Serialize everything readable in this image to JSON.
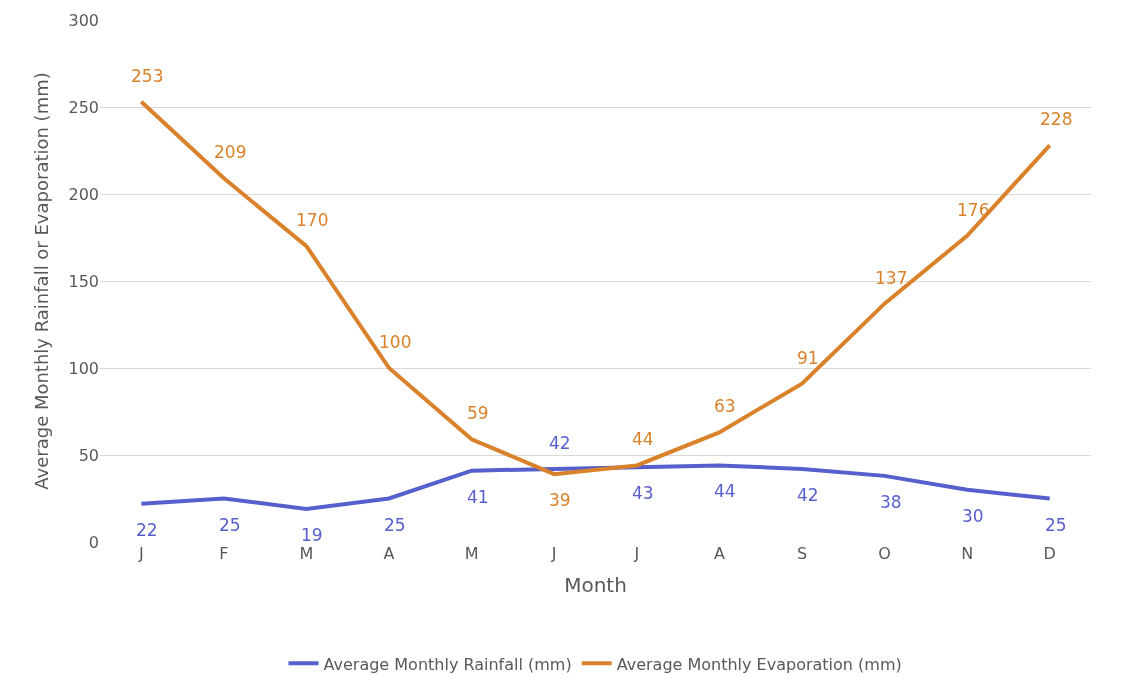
{
  "chart_data": {
    "type": "line",
    "xlabel": "Month",
    "ylabel": "Average Monthly Rainfall or Evaporation (mm)",
    "categories": [
      "J",
      "F",
      "M",
      "A",
      "M",
      "J",
      "J",
      "A",
      "S",
      "O",
      "N",
      "D"
    ],
    "series": [
      {
        "name": "Average Monthly Rainfall (mm)",
        "color": "#5660cc",
        "values": [
          22,
          25,
          19,
          25,
          41,
          42,
          43,
          44,
          42,
          38,
          30,
          25
        ]
      },
      {
        "name": "Average Monthly Evaporation (mm)",
        "color": "#d9822b",
        "values": [
          253,
          209,
          170,
          100,
          59,
          39,
          44,
          63,
          91,
          137,
          176,
          228
        ]
      }
    ],
    "ylim": [
      0,
      300
    ],
    "yticks": [
      0,
      50,
      100,
      150,
      200,
      250,
      300
    ],
    "grid": "y",
    "legend": "bottom",
    "data_labels": true,
    "marker": "none",
    "line_style": "solid"
  }
}
